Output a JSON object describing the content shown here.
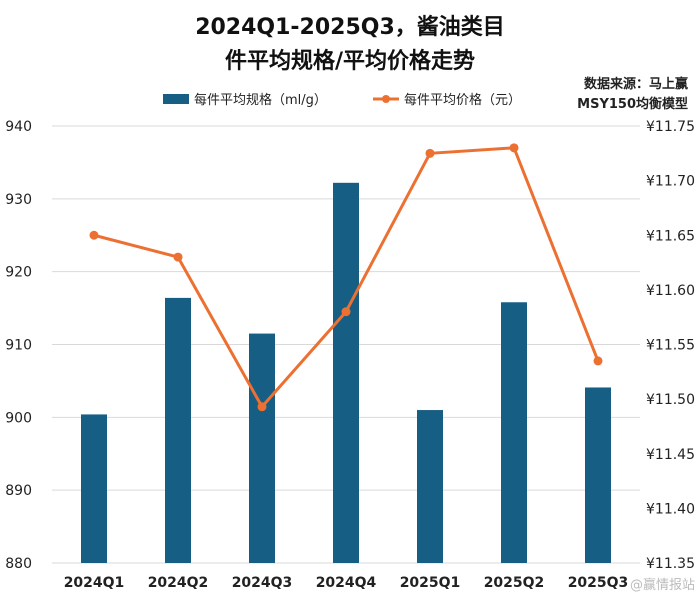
{
  "chart_data": {
    "type": "bar",
    "title_lines": [
      "2024Q1-2025Q3，酱油类目",
      "件平均规格/平均价格走势"
    ],
    "source_lines": [
      "数据来源：马上赢",
      "MSY150均衡模型"
    ],
    "categories": [
      "2024Q1",
      "2024Q2",
      "2024Q3",
      "2024Q4",
      "2025Q1",
      "2025Q2",
      "2025Q3"
    ],
    "series": [
      {
        "name": "每件平均规格（ml/g）",
        "type": "bar",
        "axis": "left",
        "values": [
          900.4,
          916.4,
          911.5,
          932.2,
          901.0,
          915.8,
          904.1
        ]
      },
      {
        "name": "每件平均价格（元）",
        "type": "line",
        "axis": "right",
        "values": [
          11.65,
          11.63,
          11.493,
          11.58,
          11.725,
          11.73,
          11.535
        ]
      }
    ],
    "y_left": {
      "min": 880,
      "max": 940,
      "step": 10,
      "ticks": [
        "880",
        "890",
        "900",
        "910",
        "920",
        "930",
        "940"
      ]
    },
    "y_right": {
      "min": 11.35,
      "max": 11.75,
      "step": 0.05,
      "ticks": [
        "¥11.35",
        "¥11.40",
        "¥11.45",
        "¥11.50",
        "¥11.55",
        "¥11.60",
        "¥11.65",
        "¥11.70",
        "¥11.75"
      ]
    },
    "grid": true,
    "legend_position": "top",
    "colors": {
      "bar": "#165e83",
      "line": "#ec7032",
      "grid": "#d9d9d9"
    }
  },
  "watermark": "@赢情报站"
}
